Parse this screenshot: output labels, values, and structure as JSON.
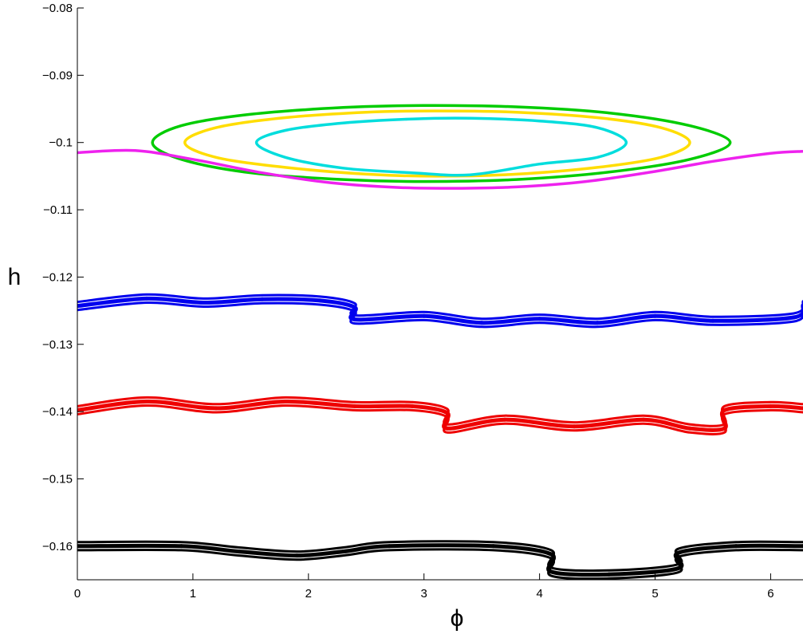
{
  "chart_data": {
    "type": "scatter",
    "title": "",
    "xlabel": "ϕ",
    "ylabel": "h",
    "xlim": [
      0,
      6.28
    ],
    "ylim": [
      -0.165,
      -0.08
    ],
    "x_ticks": [
      0,
      1,
      2,
      3,
      4,
      5,
      6
    ],
    "x_tick_labels": [
      "0",
      "1",
      "2",
      "3",
      "4",
      "5",
      "6"
    ],
    "y_ticks": [
      -0.08,
      -0.09,
      -0.1,
      -0.11,
      -0.12,
      -0.13,
      -0.14,
      -0.15,
      -0.16
    ],
    "y_tick_labels": [
      "−0.08",
      "−0.09",
      "−0.1",
      "−0.11",
      "−0.12",
      "−0.13",
      "−0.14",
      "−0.15",
      "−0.16"
    ],
    "grid": false,
    "legend": "none",
    "series": [
      {
        "color": "#00cc00",
        "kind": "closed",
        "points": [
          [
            0.65,
            -0.1
          ],
          [
            0.9,
            -0.0975
          ],
          [
            1.5,
            -0.0958
          ],
          [
            2.3,
            -0.0948
          ],
          [
            3.0,
            -0.0945
          ],
          [
            3.8,
            -0.0947
          ],
          [
            4.6,
            -0.0956
          ],
          [
            5.3,
            -0.0975
          ],
          [
            5.65,
            -0.1
          ],
          [
            5.3,
            -0.1025
          ],
          [
            4.6,
            -0.1044
          ],
          [
            3.8,
            -0.1055
          ],
          [
            3.0,
            -0.1058
          ],
          [
            2.3,
            -0.1055
          ],
          [
            1.5,
            -0.1045
          ],
          [
            0.9,
            -0.1025
          ]
        ]
      },
      {
        "color": "#ffdd00",
        "kind": "closed",
        "points": [
          [
            0.93,
            -0.1
          ],
          [
            1.2,
            -0.0978
          ],
          [
            1.8,
            -0.0963
          ],
          [
            2.5,
            -0.0955
          ],
          [
            3.1,
            -0.0953
          ],
          [
            3.8,
            -0.0955
          ],
          [
            4.5,
            -0.0963
          ],
          [
            5.05,
            -0.0978
          ],
          [
            5.3,
            -0.1
          ],
          [
            5.05,
            -0.1022
          ],
          [
            4.5,
            -0.1037
          ],
          [
            3.8,
            -0.1047
          ],
          [
            3.1,
            -0.105
          ],
          [
            2.5,
            -0.1047
          ],
          [
            1.8,
            -0.1037
          ],
          [
            1.2,
            -0.1022
          ]
        ]
      },
      {
        "color": "#00dddd",
        "kind": "closed",
        "points": [
          [
            1.55,
            -0.1
          ],
          [
            1.8,
            -0.0982
          ],
          [
            2.3,
            -0.0971
          ],
          [
            2.9,
            -0.0965
          ],
          [
            3.4,
            -0.0964
          ],
          [
            4.0,
            -0.0968
          ],
          [
            4.5,
            -0.0978
          ],
          [
            4.75,
            -0.1
          ],
          [
            4.5,
            -0.1022
          ],
          [
            4.0,
            -0.1032
          ],
          [
            3.4,
            -0.1048
          ],
          [
            2.9,
            -0.1045
          ],
          [
            2.3,
            -0.1038
          ],
          [
            1.8,
            -0.1022
          ]
        ]
      },
      {
        "color": "#ee22ee",
        "kind": "line",
        "points": [
          [
            0,
            -0.1015
          ],
          [
            0.5,
            -0.1012
          ],
          [
            1.0,
            -0.1025
          ],
          [
            1.6,
            -0.1045
          ],
          [
            2.2,
            -0.106
          ],
          [
            2.8,
            -0.1067
          ],
          [
            3.3,
            -0.1068
          ],
          [
            3.8,
            -0.1066
          ],
          [
            4.4,
            -0.1058
          ],
          [
            5.0,
            -0.1043
          ],
          [
            5.5,
            -0.1028
          ],
          [
            6.0,
            -0.1016
          ],
          [
            6.28,
            -0.1013
          ]
        ]
      },
      {
        "color": "#0000ee",
        "kind": "band",
        "points": [
          [
            0,
            -0.1243
          ],
          [
            0.6,
            -0.1232
          ],
          [
            1.1,
            -0.1238
          ],
          [
            1.6,
            -0.1233
          ],
          [
            2.1,
            -0.1235
          ],
          [
            2.4,
            -0.1245
          ],
          [
            2.4,
            -0.1263
          ],
          [
            3.0,
            -0.1258
          ],
          [
            3.5,
            -0.1268
          ],
          [
            4.0,
            -0.1262
          ],
          [
            4.5,
            -0.1268
          ],
          [
            5.0,
            -0.1258
          ],
          [
            5.5,
            -0.1265
          ],
          [
            6.2,
            -0.126
          ],
          [
            6.28,
            -0.1242
          ]
        ]
      },
      {
        "color": "#ee0000",
        "kind": "band",
        "points": [
          [
            0,
            -0.1398
          ],
          [
            0.6,
            -0.1385
          ],
          [
            1.2,
            -0.1395
          ],
          [
            1.8,
            -0.1385
          ],
          [
            2.4,
            -0.1392
          ],
          [
            2.9,
            -0.1392
          ],
          [
            3.2,
            -0.1402
          ],
          [
            3.2,
            -0.1425
          ],
          [
            3.7,
            -0.1412
          ],
          [
            4.3,
            -0.1422
          ],
          [
            4.9,
            -0.1412
          ],
          [
            5.3,
            -0.1425
          ],
          [
            5.6,
            -0.1425
          ],
          [
            5.6,
            -0.1398
          ],
          [
            6.0,
            -0.1392
          ],
          [
            6.28,
            -0.1395
          ]
        ]
      },
      {
        "color": "#000000",
        "kind": "band",
        "points": [
          [
            0,
            -0.16
          ],
          [
            0.9,
            -0.16
          ],
          [
            1.4,
            -0.1608
          ],
          [
            1.9,
            -0.1614
          ],
          [
            2.3,
            -0.1608
          ],
          [
            2.7,
            -0.16
          ],
          [
            3.6,
            -0.16
          ],
          [
            4.1,
            -0.1612
          ],
          [
            4.1,
            -0.1638
          ],
          [
            4.6,
            -0.1642
          ],
          [
            5.2,
            -0.1633
          ],
          [
            5.2,
            -0.161
          ],
          [
            5.7,
            -0.16
          ],
          [
            6.28,
            -0.16
          ]
        ]
      }
    ]
  }
}
